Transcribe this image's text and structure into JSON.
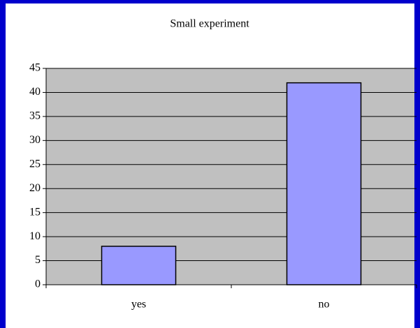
{
  "chart_data": {
    "type": "bar",
    "title": "Small experiment",
    "categories": [
      "yes",
      "no"
    ],
    "values": [
      8,
      42
    ],
    "color": "#9999ff",
    "ylim": [
      0,
      45
    ],
    "yticks": [
      0,
      5,
      10,
      15,
      20,
      25,
      30,
      35,
      40,
      45
    ],
    "grid": true
  }
}
